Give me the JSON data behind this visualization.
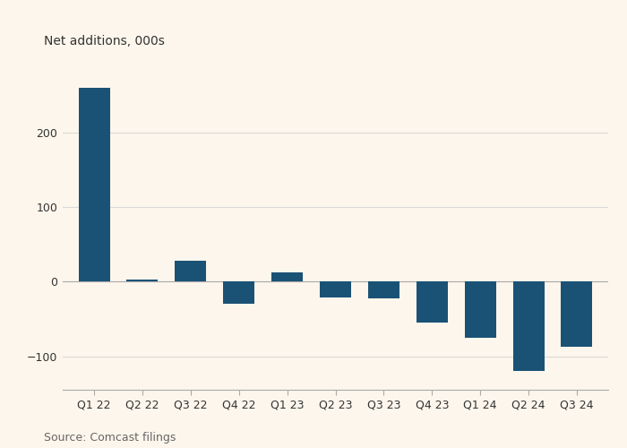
{
  "categories": [
    "Q1 22",
    "Q2 22",
    "Q3 22",
    "Q4 22",
    "Q1 23",
    "Q2 23",
    "Q3 23",
    "Q4 23",
    "Q1 24",
    "Q2 24",
    "Q3 24"
  ],
  "values": [
    260,
    3,
    28,
    -30,
    13,
    -21,
    -22,
    -55,
    -75,
    -120,
    -87
  ],
  "bar_color": "#1a5276",
  "ylabel": "Net additions, 000s",
  "source": "Source: Comcast filings",
  "ylim": [
    -145,
    300
  ],
  "yticks": [
    -100,
    0,
    100,
    200
  ],
  "background_color": "#FDF6EC",
  "grid_color": "#d9d9d9",
  "ylabel_fontsize": 10,
  "source_fontsize": 9,
  "tick_fontsize": 9,
  "bar_width": 0.65
}
